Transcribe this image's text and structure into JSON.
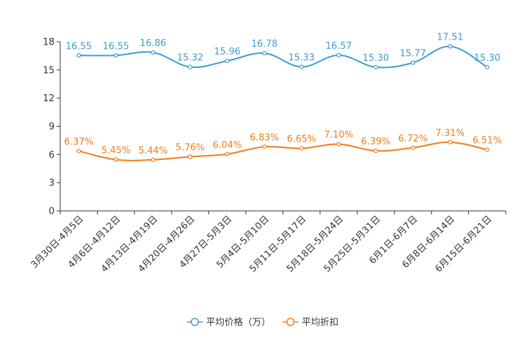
{
  "chart_data": {
    "type": "line",
    "title": "",
    "xlabel": "",
    "ylabel": "",
    "ylim": [
      0,
      18
    ],
    "yticks": [
      0,
      3,
      6,
      9,
      12,
      15,
      18
    ],
    "grid": false,
    "legend_position": "bottom",
    "categories": [
      "3月30日-4月5日",
      "4月6日-4月12日",
      "4月13日-4月19日",
      "4月20日-4月26日",
      "4月27日-5月3日",
      "5月4日-5月10日",
      "5月11日-5月17日",
      "5月18日-5月24日",
      "5月25日-5月31日",
      "6月1日-6月7日",
      "6月8日-6月14日",
      "6月15日-6月21日"
    ],
    "series": [
      {
        "name": "平均价格（万）",
        "color": "#3d9ccf",
        "values": [
          16.55,
          16.55,
          16.86,
          15.32,
          15.96,
          16.78,
          15.33,
          16.57,
          15.3,
          15.77,
          17.51,
          15.3
        ],
        "labels": [
          "16.55",
          "16.55",
          "16.86",
          "15.32",
          "15.96",
          "16.78",
          "15.33",
          "16.57",
          "15.30",
          "15.77",
          "17.51",
          "15.30"
        ]
      },
      {
        "name": "平均折扣",
        "color": "#f07c1b",
        "values": [
          6.37,
          5.45,
          5.44,
          5.76,
          6.04,
          6.83,
          6.65,
          7.1,
          6.39,
          6.72,
          7.31,
          6.51
        ],
        "labels": [
          "6.37%",
          "5.45%",
          "5.44%",
          "5.76%",
          "6.04%",
          "6.83%",
          "6.65%",
          "7.10%",
          "6.39%",
          "6.72%",
          "7.31%",
          "6.51%"
        ]
      }
    ]
  }
}
